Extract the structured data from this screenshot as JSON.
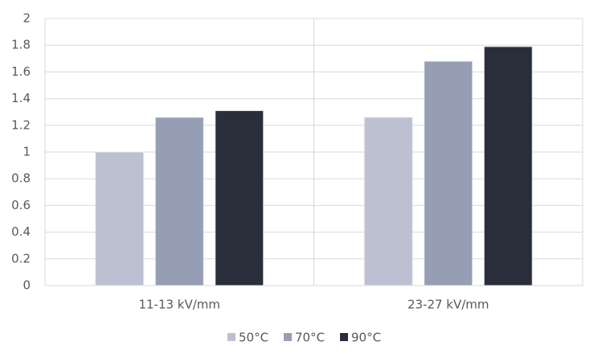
{
  "chart_data": {
    "type": "bar",
    "categories": [
      "11-13 kV/mm",
      "23-27 kV/mm"
    ],
    "series": [
      {
        "name": "50°C",
        "color": "#bcc0d1",
        "values": [
          1.0,
          1.26
        ]
      },
      {
        "name": "70°C",
        "color": "#959eb5",
        "values": [
          1.26,
          1.68
        ]
      },
      {
        "name": "90°C",
        "color": "#2a2e3a",
        "values": [
          1.31,
          1.79
        ]
      }
    ],
    "ylim": [
      0,
      2
    ],
    "yticks": [
      0,
      0.2,
      0.4,
      0.6,
      0.8,
      1,
      1.2,
      1.4,
      1.6,
      1.8,
      2
    ],
    "grid": true,
    "legend": "bottom"
  }
}
